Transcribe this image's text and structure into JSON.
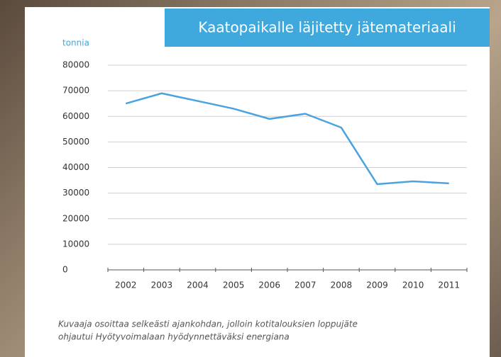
{
  "chart_data": {
    "type": "line",
    "title": "Kaatopaikalle läjitetty jätemateriaali",
    "y_label": "tonnia",
    "categories": [
      "2002",
      "2003",
      "2004",
      "2005",
      "2006",
      "2007",
      "2008",
      "2009",
      "2010",
      "2011"
    ],
    "series": [
      {
        "name": "Kaatopaikalle läjitetty jätemateriaali",
        "color": "#4aa3df",
        "values": [
          65000,
          69000,
          66000,
          63000,
          59000,
          61000,
          55600,
          33500,
          34600,
          33800
        ]
      }
    ],
    "ylim": [
      0,
      80000
    ],
    "yticks": [
      0,
      10000,
      20000,
      30000,
      40000,
      50000,
      60000,
      70000,
      80000
    ],
    "grid": true,
    "caption": [
      "Kuvaaja osoittaa selkeästi ajankohdan, jolloin kotitalouksien loppujäte",
      "ohjautui Hyötyvoimalaan hyödynnettäväksi energiana"
    ]
  }
}
